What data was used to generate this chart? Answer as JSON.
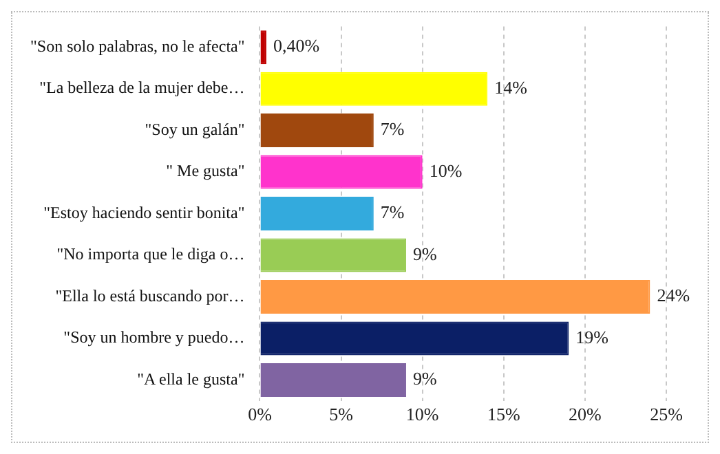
{
  "chart_data": {
    "type": "bar",
    "orientation": "horizontal",
    "categories": [
      "\"Son solo palabras, no le afecta\"",
      "\"La belleza de la mujer debe…",
      "\"Soy un galán\"",
      "\" Me gusta\"",
      "\"Estoy haciendo sentir bonita\"",
      "\"No importa que le diga o…",
      "\"Ella lo está buscando por…",
      "\"Soy un hombre y puedo…",
      "\"A ella le gusta\""
    ],
    "values": [
      0.4,
      14,
      7,
      10,
      7,
      9,
      24,
      19,
      9
    ],
    "colors": [
      "#c00000",
      "#ffff00",
      "#a0480e",
      "#ff33cc",
      "#33aadd",
      "#99cc55",
      "#ff9944",
      "#0b1f66",
      "#8064a2"
    ],
    "value_labels": [
      "0,40%",
      "14%",
      "7%",
      "10%",
      "7%",
      "9%",
      "24%",
      "19%",
      "9%"
    ],
    "xlim": [
      0,
      25
    ],
    "xticks": [
      {
        "value": 0,
        "label": "0%"
      },
      {
        "value": 5,
        "label": "5%"
      },
      {
        "value": 10,
        "label": "10%"
      },
      {
        "value": 15,
        "label": "15%"
      },
      {
        "value": 20,
        "label": "20%"
      },
      {
        "value": 25,
        "label": "25%"
      }
    ],
    "grid": "x"
  }
}
